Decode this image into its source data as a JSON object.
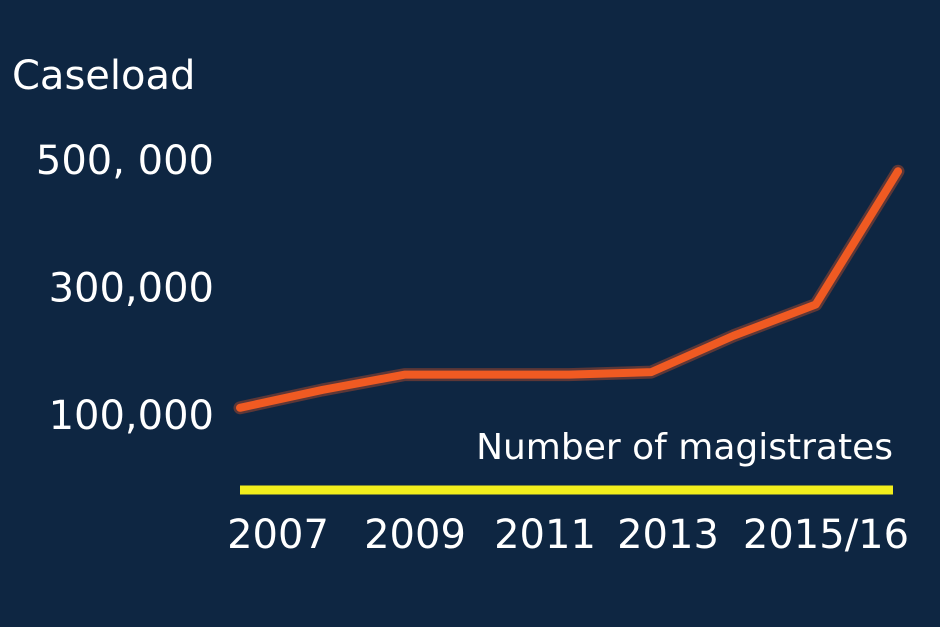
{
  "chart_data": {
    "type": "line",
    "y_label": "Caseload",
    "annotation": "Number of magistrates",
    "categories": [
      "2007",
      null,
      "2009",
      null,
      "2011",
      null,
      "2013",
      null,
      "2015/16"
    ],
    "series": [
      {
        "name": "Caseload",
        "color": "#f05a22",
        "values": [
          116000,
          144000,
          168000,
          168000,
          168000,
          172000,
          229000,
          278000,
          487000
        ]
      }
    ],
    "ylim": [
      100000,
      500000
    ],
    "yticks": [
      {
        "value": 100000,
        "label": "100,000"
      },
      {
        "value": 300000,
        "label": "300,000"
      },
      {
        "value": 500000,
        "label": "500, 000"
      }
    ],
    "grid": false
  }
}
